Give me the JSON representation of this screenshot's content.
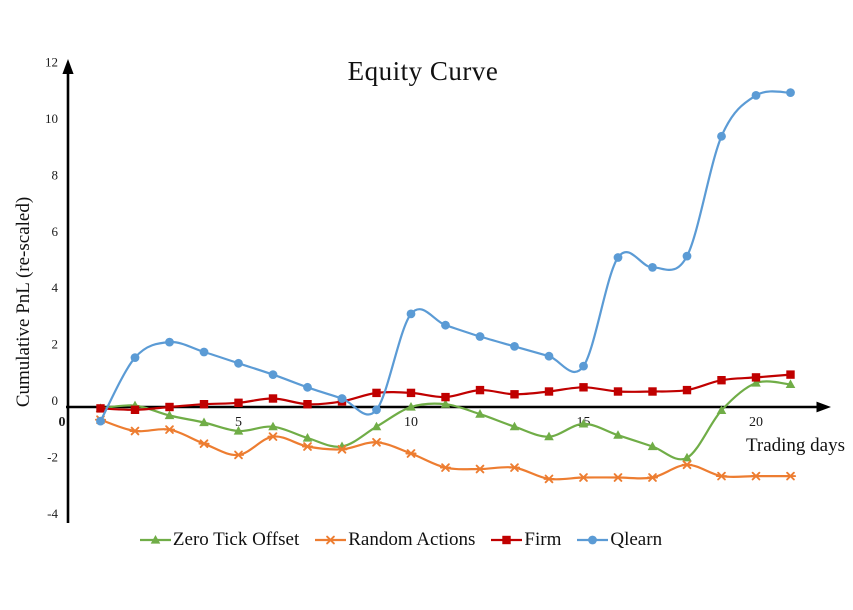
{
  "figure": {
    "background": "#ffffff"
  },
  "chart_data": {
    "type": "line",
    "title": "Equity Curve",
    "xlabel": "Trading days",
    "ylabel": "Cumulative PnL (re-scaled)",
    "xlim": [
      0,
      22
    ],
    "ylim": [
      -4,
      12
    ],
    "x_ticks": [
      0,
      5,
      10,
      15,
      20
    ],
    "y_ticks": [
      12,
      10,
      8,
      6,
      4,
      2,
      0,
      -2,
      -4
    ],
    "grid": false,
    "legend_position": "bottom",
    "axis_color": "#000000",
    "line_style": "smooth",
    "x": [
      1,
      2,
      3,
      4,
      5,
      6,
      7,
      8,
      9,
      10,
      11,
      12,
      13,
      14,
      15,
      16,
      17,
      18,
      19,
      20,
      21
    ],
    "series": [
      {
        "name": "Zero Tick Offset",
        "color": "#70AD47",
        "marker": "triangle",
        "values": [
          -0.05,
          0.05,
          -0.3,
          -0.55,
          -0.85,
          -0.7,
          -1.1,
          -1.4,
          -0.7,
          0.0,
          0.1,
          -0.25,
          -0.7,
          -1.05,
          -0.6,
          -1.0,
          -1.4,
          -1.8,
          -0.12,
          0.85,
          0.8
        ]
      },
      {
        "name": "Random Actions",
        "color": "#ED7D31",
        "marker": "asterisk",
        "values": [
          -0.45,
          -0.85,
          -0.8,
          -1.3,
          -1.7,
          -1.05,
          -1.4,
          -1.5,
          -1.25,
          -1.65,
          -2.15,
          -2.2,
          -2.15,
          -2.55,
          -2.5,
          -2.5,
          -2.5,
          -2.05,
          -2.45,
          -2.45,
          -2.45
        ]
      },
      {
        "name": "Firm",
        "color": "#C00000",
        "marker": "square",
        "values": [
          -0.05,
          -0.1,
          0.0,
          0.1,
          0.15,
          0.3,
          0.1,
          0.2,
          0.5,
          0.5,
          0.35,
          0.6,
          0.45,
          0.55,
          0.7,
          0.55,
          0.55,
          0.6,
          0.95,
          1.05,
          1.15
        ]
      },
      {
        "name": "Qlearn",
        "color": "#5B9BD5",
        "marker": "circle",
        "values": [
          -0.5,
          1.75,
          2.3,
          1.95,
          1.55,
          1.15,
          0.7,
          0.3,
          -0.1,
          3.3,
          2.9,
          2.5,
          2.15,
          1.8,
          1.45,
          5.3,
          4.95,
          5.35,
          9.6,
          11.05,
          11.15
        ]
      }
    ]
  }
}
